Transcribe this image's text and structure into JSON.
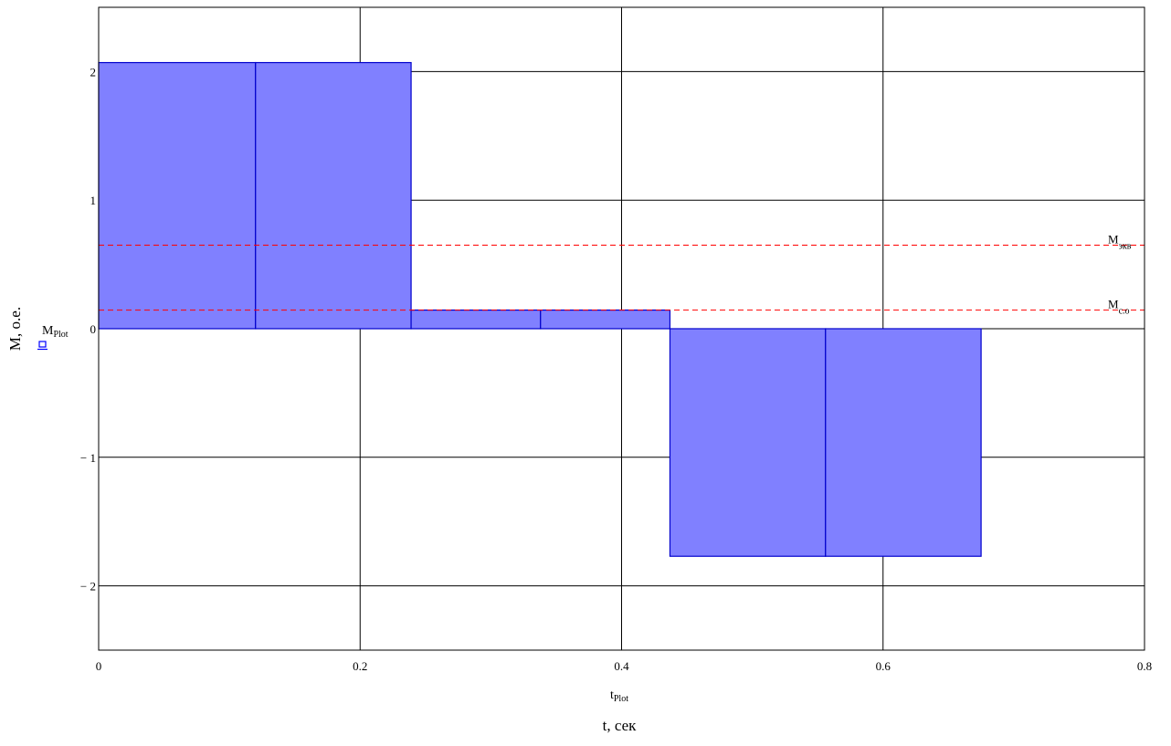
{
  "chart_data": {
    "type": "bar",
    "xlim": [
      0,
      0.8
    ],
    "ylim": [
      -2.5,
      2.5
    ],
    "x_ticks": [
      0,
      0.2,
      0.4,
      0.6,
      0.8
    ],
    "x_tick_labels": [
      "0",
      "0.2",
      "0.4",
      "0.6",
      "0.8"
    ],
    "y_ticks": [
      -2,
      -1,
      0,
      1,
      2
    ],
    "y_tick_labels": [
      "− 2",
      "− 1",
      "0",
      "1",
      "2"
    ],
    "grid": true,
    "xlabel": "t, сек",
    "ylabel": "M, о.е.",
    "x_trace": {
      "name": "t",
      "subscript": "Plot"
    },
    "y_trace": {
      "name": "M",
      "subscript": "Plot"
    },
    "series": [
      {
        "bars": [
          {
            "x0": 0,
            "x1": 0.12,
            "value": 2.07
          },
          {
            "x0": 0.12,
            "x1": 0.239,
            "value": 2.07
          },
          {
            "x0": 0.239,
            "x1": 0.338,
            "value": 0.145
          },
          {
            "x0": 0.338,
            "x1": 0.437,
            "value": 0.145
          },
          {
            "x0": 0.437,
            "x1": 0.556,
            "value": -1.77
          },
          {
            "x0": 0.556,
            "x1": 0.675,
            "value": -1.77
          }
        ]
      }
    ],
    "reference_lines": [
      {
        "label": "M",
        "subscript": "экв",
        "value": 0.65
      },
      {
        "label": "M",
        "subscript": "c.o",
        "value": 0.145
      }
    ],
    "colors": {
      "bar_fill": "#8080ff",
      "bar_stroke": "#0000cc",
      "reference_line": "#ff0000",
      "grid": "#000000",
      "trace_marker": "#0000ff"
    }
  }
}
